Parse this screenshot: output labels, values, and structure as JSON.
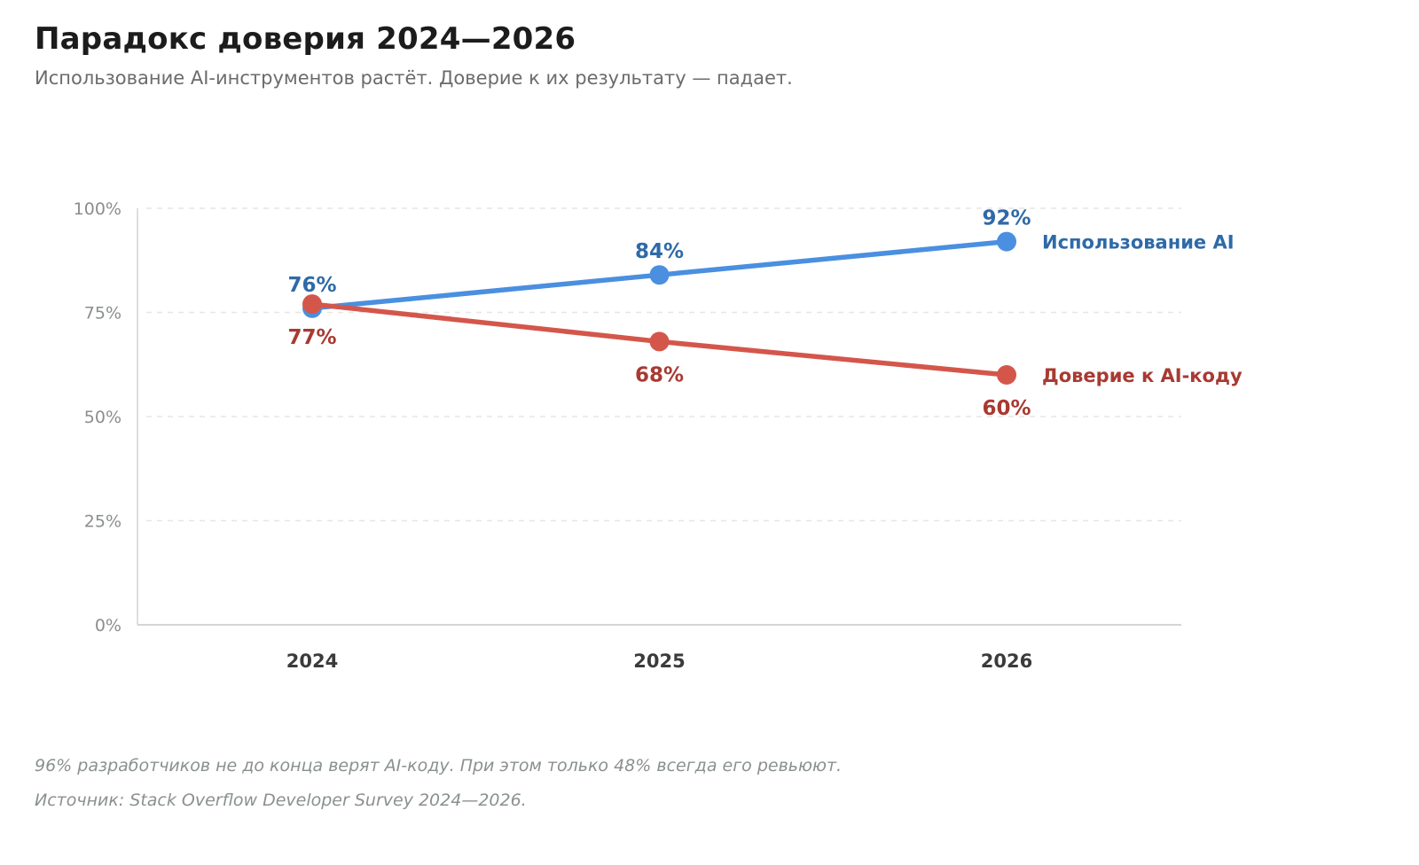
{
  "title": "Парадокс доверия 2024—2026",
  "subtitle": "Использование AI-инструментов растёт. Доверие к их результату — падает.",
  "notes": {
    "line1": "96% разработчиков не до конца верят AI-коду. При этом только 48% всегда его ревьюют.",
    "line2": "Источник: Stack Overflow Developer Survey 2024—2026."
  },
  "chart_data": {
    "type": "line",
    "title": "Парадокс доверия 2024—2026",
    "subtitle": "Использование AI-инструментов растёт. Доверие к их результату — падает.",
    "xlabel": "",
    "ylabel": "",
    "x": [
      "2024",
      "2025",
      "2026"
    ],
    "ylim": [
      0,
      100
    ],
    "yticks": [
      0,
      25,
      50,
      75,
      100
    ],
    "ytick_labels": [
      "0%",
      "25%",
      "50%",
      "75%",
      "100%"
    ],
    "grid": "horizontal-dashed",
    "legend": "inline-right",
    "series": [
      {
        "name": "Использование AI",
        "values": [
          76,
          84,
          92
        ],
        "labels": [
          "76%",
          "84%",
          "92%"
        ],
        "color": "#4a8fe0",
        "label_color": "#2f6aa8",
        "label_position": "above"
      },
      {
        "name": "Доверие к AI-коду",
        "values": [
          77,
          68,
          60
        ],
        "labels": [
          "77%",
          "68%",
          "60%"
        ],
        "color": "#d4564b",
        "label_color": "#a83a32",
        "label_position": "below"
      }
    ]
  }
}
